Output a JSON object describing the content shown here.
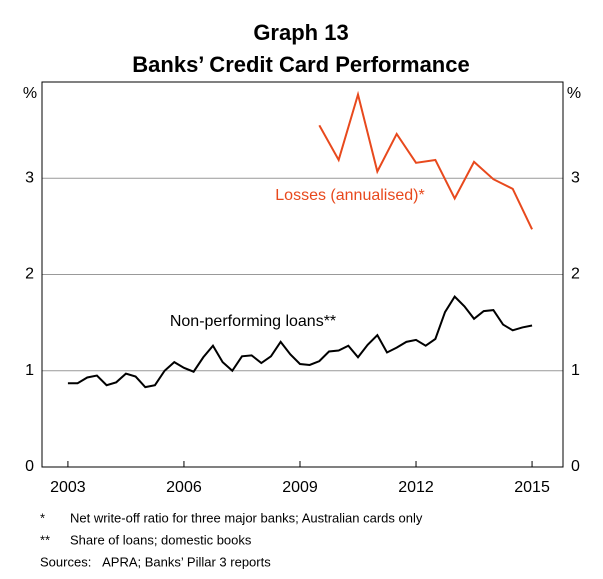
{
  "chart_data": {
    "type": "line",
    "title": "Graph 13",
    "subtitle": "Banks’ Credit Card Performance",
    "ylabel": "%",
    "xlim": [
      2002.33,
      2015.8
    ],
    "xticks": [
      2003,
      2006,
      2009,
      2012,
      2015
    ],
    "ylim": [
      0,
      4
    ],
    "yticks": [
      0,
      1,
      2,
      3
    ],
    "grid": true,
    "series": [
      {
        "name": "Losses (annualised)*",
        "color": "#e8491d",
        "x": [
          2009.5,
          2010.0,
          2010.5,
          2011.0,
          2011.5,
          2012.0,
          2012.5,
          2013.0,
          2013.5,
          2014.0,
          2014.5,
          2015.0
        ],
        "values": [
          3.55,
          3.19,
          3.87,
          3.07,
          3.46,
          3.16,
          3.19,
          2.79,
          3.17,
          2.99,
          2.89,
          2.47
        ]
      },
      {
        "name": "Non-performing loans**",
        "color": "#000000",
        "x": [
          2003.0,
          2003.25,
          2003.5,
          2003.75,
          2004.0,
          2004.25,
          2004.5,
          2004.75,
          2005.0,
          2005.25,
          2005.5,
          2005.75,
          2006.0,
          2006.25,
          2006.5,
          2006.75,
          2007.0,
          2007.25,
          2007.5,
          2007.75,
          2008.0,
          2008.25,
          2008.5,
          2008.75,
          2009.0,
          2009.25,
          2009.5,
          2009.75,
          2010.0,
          2010.25,
          2010.5,
          2010.75,
          2011.0,
          2011.25,
          2011.5,
          2011.75,
          2012.0,
          2012.25,
          2012.5,
          2012.75,
          2013.0,
          2013.25,
          2013.5,
          2013.75,
          2014.0,
          2014.25,
          2014.5,
          2014.75,
          2015.0
        ],
        "values": [
          0.87,
          0.87,
          0.93,
          0.95,
          0.85,
          0.88,
          0.97,
          0.94,
          0.83,
          0.85,
          1.0,
          1.09,
          1.03,
          0.99,
          1.14,
          1.26,
          1.09,
          1.0,
          1.15,
          1.16,
          1.08,
          1.15,
          1.3,
          1.17,
          1.07,
          1.06,
          1.1,
          1.2,
          1.21,
          1.26,
          1.14,
          1.27,
          1.37,
          1.19,
          1.24,
          1.3,
          1.32,
          1.26,
          1.33,
          1.61,
          1.77,
          1.67,
          1.54,
          1.62,
          1.63,
          1.48,
          1.42,
          1.45,
          1.47
        ]
      }
    ],
    "footnotes": [
      {
        "mark": "*",
        "text": "Net write-off ratio for three major banks; Australian cards only"
      },
      {
        "mark": "**",
        "text": "Share of loans; domestic books"
      }
    ],
    "sources": "Sources:   APRA; Banks’ Pillar 3 reports"
  }
}
